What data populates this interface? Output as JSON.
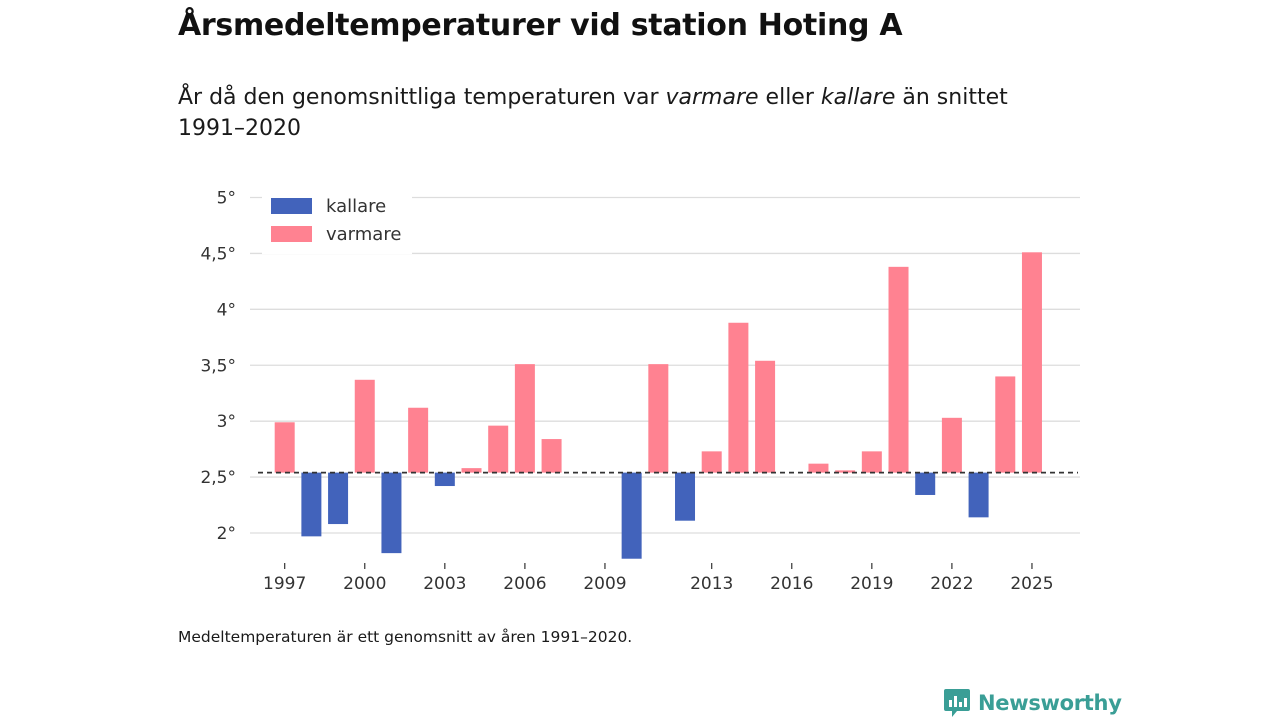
{
  "header": {
    "title": "Årsmedeltemperaturer vid station Hoting A",
    "subtitle_part1": "År då den genomsnittliga temperaturen var ",
    "subtitle_warm": "varmare",
    "subtitle_part2": " eller ",
    "subtitle_cold": "kallare",
    "subtitle_part3": " än snittet 1991–2020"
  },
  "footer": {
    "note": "Medeltemperaturen är ett genomsnitt av åren 1991–2020.",
    "brand": "Newsworthy"
  },
  "colors": {
    "warm": "#ff8291",
    "cold": "#4263bb",
    "grid": "#dddddd",
    "baseline": "#333333",
    "brand": "#3a9e96"
  },
  "chart_data": {
    "type": "bar",
    "title": "Årsmedeltemperaturer vid station Hoting A",
    "xlabel": "",
    "ylabel": "",
    "baseline": 2.54,
    "baseline_style": "dashed",
    "ylim": [
      1.75,
      5.0
    ],
    "y_ticks": [
      2,
      2.5,
      3,
      3.5,
      4,
      4.5,
      5
    ],
    "y_tick_labels": [
      "2°",
      "2,5°",
      "3°",
      "3,5°",
      "4°",
      "4,5°",
      "5°"
    ],
    "x_ticks": [
      1997,
      2000,
      2003,
      2006,
      2009,
      2013,
      2016,
      2019,
      2022,
      2025
    ],
    "x_range": [
      1995.7,
      2026.8
    ],
    "legend": [
      {
        "key": "cold",
        "label": "kallare"
      },
      {
        "key": "warm",
        "label": "varmare"
      }
    ],
    "legend_position": "top-left",
    "series": [
      {
        "name": "varmare",
        "x": [
          1997,
          2000,
          2002,
          2004,
          2005,
          2006,
          2007,
          2011,
          2013,
          2014,
          2015,
          2017,
          2018,
          2019,
          2020,
          2022,
          2024,
          2025
        ],
        "values": [
          2.99,
          3.37,
          3.12,
          2.58,
          2.96,
          3.51,
          2.84,
          3.51,
          2.73,
          3.88,
          3.54,
          2.62,
          2.56,
          2.73,
          4.38,
          3.03,
          3.4,
          4.51
        ]
      },
      {
        "name": "kallare",
        "x": [
          1998,
          1999,
          2001,
          2003,
          2010,
          2012,
          2021,
          2023
        ],
        "values": [
          1.97,
          2.08,
          1.82,
          2.42,
          1.77,
          2.11,
          2.34,
          2.14
        ]
      }
    ]
  }
}
